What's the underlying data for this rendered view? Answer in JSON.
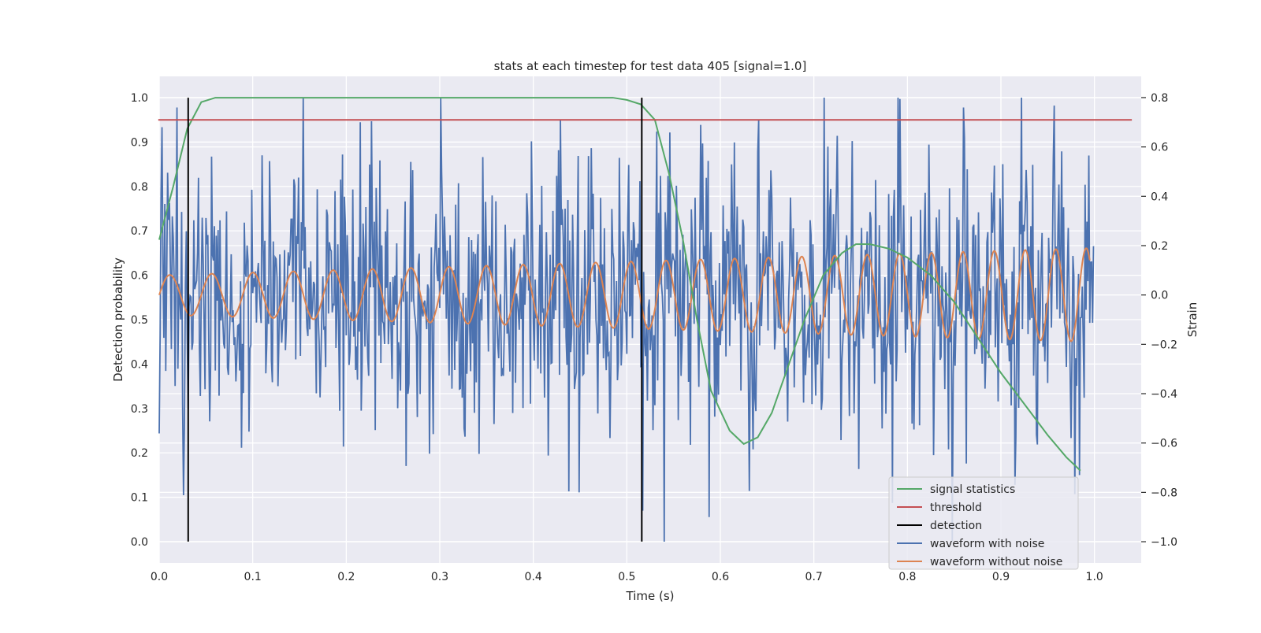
{
  "chart_data": {
    "type": "line",
    "title": "stats at each timestep for test data 405 [signal=1.0]",
    "xlabel": "Time (s)",
    "ylabel_left": "Detection probability",
    "ylabel_right": "Strain",
    "xlim": [
      0.0,
      1.05
    ],
    "ylim_left": [
      -0.048,
      1.048
    ],
    "ylim_right": [
      -1.086,
      0.886
    ],
    "x_ticks": [
      0.0,
      0.1,
      0.2,
      0.3,
      0.4,
      0.5,
      0.6,
      0.7,
      0.8,
      0.9,
      1.0
    ],
    "x_tick_labels": [
      "0.0",
      "0.1",
      "0.2",
      "0.3",
      "0.4",
      "0.5",
      "0.6",
      "0.7",
      "0.8",
      "0.9",
      "1.0"
    ],
    "y_left_ticks": [
      0.0,
      0.1,
      0.2,
      0.3,
      0.4,
      0.5,
      0.6,
      0.7,
      0.8,
      0.9,
      1.0
    ],
    "y_left_tick_labels": [
      "0.0",
      "0.1",
      "0.2",
      "0.3",
      "0.4",
      "0.5",
      "0.6",
      "0.7",
      "0.8",
      "0.9",
      "1.0"
    ],
    "y_right_ticks": [
      -1.0,
      -0.8,
      -0.6,
      -0.4,
      -0.2,
      0.0,
      0.2,
      0.4,
      0.6,
      0.8
    ],
    "y_right_tick_labels": [
      "−1.0",
      "−0.8",
      "−0.6",
      "−0.4",
      "−0.2",
      "0.0",
      "0.2",
      "0.4",
      "0.6",
      "0.8"
    ],
    "grid": true,
    "legend_position": "bottom-right",
    "colors": {
      "signal_statistics": "#55a868",
      "threshold": "#c44e52",
      "detection": "#000000",
      "waveform_with_noise": "#4c72b0",
      "waveform_without_noise": "#dd8452",
      "axes_background": "#eaeaf2",
      "grid": "#ffffff"
    },
    "series": [
      {
        "name": "signal statistics",
        "axis": "left",
        "x": [
          0.0,
          0.015,
          0.03,
          0.045,
          0.06,
          0.08,
          0.1,
          0.2,
          0.3,
          0.4,
          0.45,
          0.485,
          0.5,
          0.515,
          0.53,
          0.545,
          0.56,
          0.575,
          0.59,
          0.61,
          0.625,
          0.64,
          0.655,
          0.67,
          0.69,
          0.71,
          0.73,
          0.745,
          0.76,
          0.78,
          0.8,
          0.825,
          0.85,
          0.875,
          0.9,
          0.925,
          0.95,
          0.97,
          0.985
        ],
        "y": [
          0.68,
          0.8,
          0.93,
          0.99,
          1.0,
          1.0,
          1.0,
          1.0,
          1.0,
          1.0,
          1.0,
          1.0,
          0.995,
          0.985,
          0.95,
          0.83,
          0.68,
          0.5,
          0.34,
          0.25,
          0.22,
          0.235,
          0.29,
          0.38,
          0.5,
          0.6,
          0.65,
          0.67,
          0.67,
          0.66,
          0.64,
          0.6,
          0.54,
          0.46,
          0.38,
          0.31,
          0.24,
          0.19,
          0.16
        ]
      },
      {
        "name": "threshold",
        "axis": "left",
        "x": [
          -0.001,
          1.04
        ],
        "y": [
          0.95,
          0.95
        ]
      },
      {
        "name": "detection",
        "axis": "left",
        "segments": [
          {
            "x": [
              0.031,
              0.031
            ],
            "y": [
              0.0,
              1.0
            ]
          },
          {
            "x": [
              0.516,
              0.516
            ],
            "y": [
              0.0,
              1.0
            ]
          }
        ]
      },
      {
        "name": "waveform with noise",
        "axis": "right",
        "generated": true,
        "x_start": 0.0,
        "x_end": 0.999,
        "sample_count": 1000,
        "noise_amplitude": 0.27,
        "y_min": -1.0,
        "y_max": 0.8,
        "highlighted_peaks": [
          {
            "x": 0.003,
            "y": 0.68
          },
          {
            "x": 0.019,
            "y": 0.76
          },
          {
            "x": 0.154,
            "y": 0.8
          },
          {
            "x": 0.449,
            "y": -0.8
          },
          {
            "x": 0.54,
            "y": -1.0
          },
          {
            "x": 0.588,
            "y": -0.9
          },
          {
            "x": 0.641,
            "y": 0.71
          },
          {
            "x": 0.711,
            "y": 0.8
          },
          {
            "x": 0.86,
            "y": 0.76
          },
          {
            "x": 0.984,
            "y": -0.73
          }
        ]
      },
      {
        "name": "waveform without noise",
        "axis": "right",
        "generated": true,
        "function": "chirp",
        "x_start": 0.0,
        "x_end": 0.995,
        "amplitude_start": 0.08,
        "amplitude_end": 0.19,
        "frequency_start_hz": 22,
        "frequency_end_hz": 31,
        "offset": 0.0
      }
    ],
    "legend": [
      {
        "label": "signal statistics",
        "color": "#55a868"
      },
      {
        "label": "threshold",
        "color": "#c44e52"
      },
      {
        "label": "detection",
        "color": "#000000"
      },
      {
        "label": "waveform with noise",
        "color": "#4c72b0"
      },
      {
        "label": "waveform without noise",
        "color": "#dd8452"
      }
    ]
  }
}
